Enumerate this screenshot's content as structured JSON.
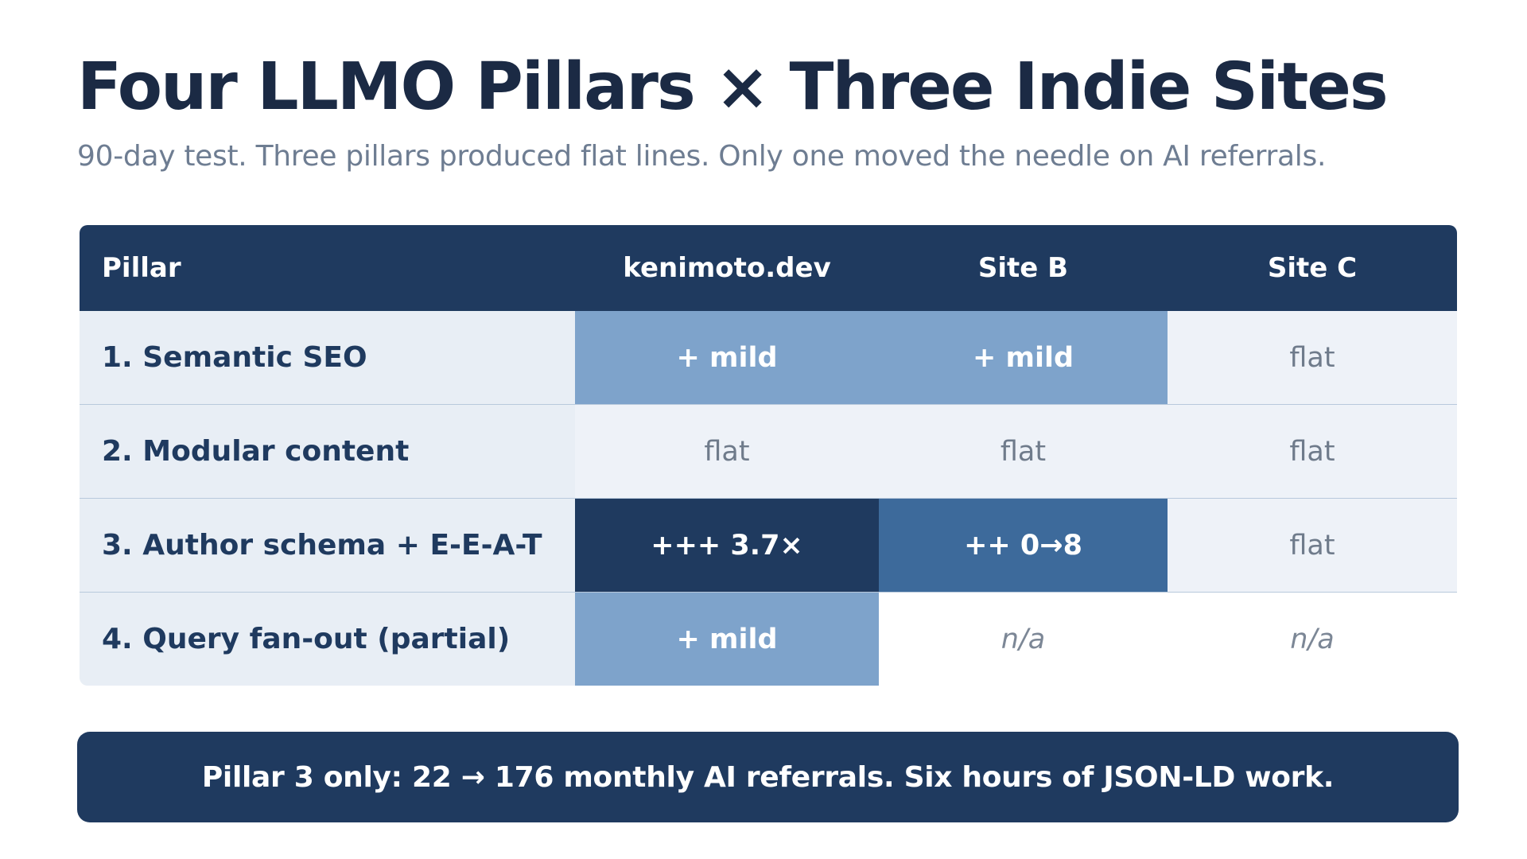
{
  "title": "Four LLMO Pillars × Three Indie Sites",
  "subtitle": "90-day test. Three pillars produced flat lines. Only one moved the needle on AI referrals.",
  "table": {
    "headers": [
      "Pillar",
      "kenimoto.dev",
      "Site B",
      "Site C"
    ],
    "rows": [
      {
        "pillar": "1. Semantic SEO",
        "cells": [
          "+ mild",
          "+ mild",
          "flat"
        ]
      },
      {
        "pillar": "2. Modular content",
        "cells": [
          "flat",
          "flat",
          "flat"
        ]
      },
      {
        "pillar": "3. Author schema + E-E-A-T",
        "cells": [
          "+++ 3.7×",
          "++ 0→8",
          "flat"
        ]
      },
      {
        "pillar": "4. Query fan-out (partial)",
        "cells": [
          "+ mild",
          "n/a",
          "n/a"
        ]
      }
    ]
  },
  "callout": "Pillar 3 only: 22 → 176 monthly AI referrals. Six hours of JSON-LD work.",
  "colors": {
    "navy": "#1f3a5f",
    "strong": "#1f3a5f",
    "medium": "#3d6a9b",
    "mild": "#7ea3cb",
    "flat_bg": "#eef2f8",
    "pillar_bg": "#e8eef5",
    "title_text": "#1b2a44",
    "subtitle_text": "#6e7d92"
  }
}
